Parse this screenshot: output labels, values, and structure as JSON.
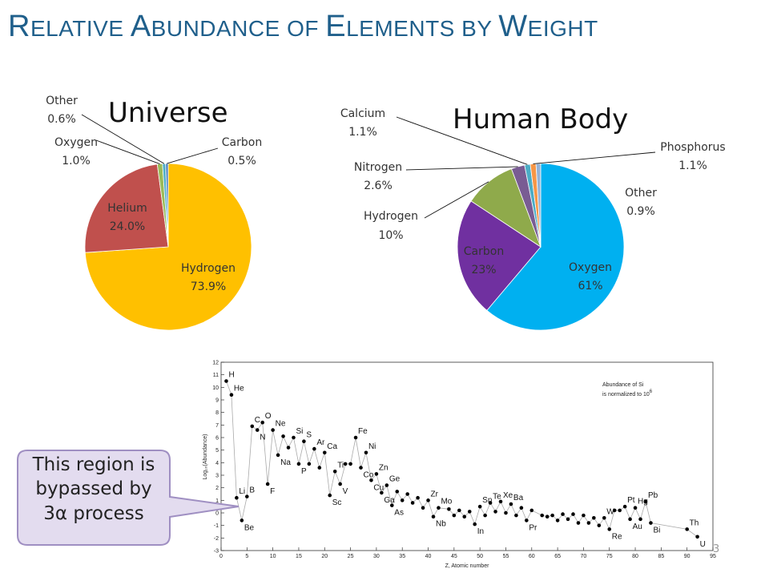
{
  "slide": {
    "title_parts": [
      {
        "text": "R",
        "size": "big"
      },
      {
        "text": "ELATIVE ",
        "size": "small"
      },
      {
        "text": "A",
        "size": "big"
      },
      {
        "text": "BUNDANCE OF ",
        "size": "small"
      },
      {
        "text": "E",
        "size": "big"
      },
      {
        "text": "LEMENTS BY ",
        "size": "small"
      },
      {
        "text": "W",
        "size": "big"
      },
      {
        "text": "EIGHT",
        "size": "small"
      }
    ],
    "slide_number": "3",
    "callout": {
      "text_lines": [
        "This region is",
        "bypassed by",
        "3α process"
      ],
      "fill": "#e3dcef",
      "stroke": "#9f8fc2"
    }
  },
  "chart_data": [
    {
      "type": "pie",
      "title": "Universe",
      "slices": [
        {
          "name": "Hydrogen",
          "label": "73.9%",
          "value": 73.9,
          "color": "#ffc000"
        },
        {
          "name": "Helium",
          "label": "24.0%",
          "value": 24.0,
          "color": "#c0504d"
        },
        {
          "name": "Oxygen",
          "label": "1.0%",
          "value": 1.0,
          "color": "#9bbb59"
        },
        {
          "name": "Other",
          "label": "0.6%",
          "value": 0.6,
          "color": "#4bacc6"
        },
        {
          "name": "Carbon",
          "label": "0.5%",
          "value": 0.5,
          "color": "#4f81bd"
        }
      ]
    },
    {
      "type": "pie",
      "title": "Human Body",
      "slices": [
        {
          "name": "Oxygen",
          "label": "61%",
          "value": 61,
          "color": "#00b0f0"
        },
        {
          "name": "Carbon",
          "label": "23%",
          "value": 23,
          "color": "#7030a0"
        },
        {
          "name": "Hydrogen",
          "label": "10%",
          "value": 10,
          "color": "#8faa4b"
        },
        {
          "name": "Nitrogen",
          "label": "2.6%",
          "value": 2.6,
          "color": "#795c93"
        },
        {
          "name": "Calcium",
          "label": "1.1%",
          "value": 1.1,
          "color": "#4bacc6"
        },
        {
          "name": "Phosphorus",
          "label": "1.1%",
          "value": 1.1,
          "color": "#f79646"
        },
        {
          "name": "Other",
          "label": "0.9%",
          "value": 0.9,
          "color": "#95b3d7"
        }
      ]
    },
    {
      "type": "line",
      "title": "",
      "xlabel": "Z, Atomic number",
      "ylabel": "Log₁₀(Abundance)",
      "xlim": [
        0,
        95
      ],
      "ylim": [
        -3,
        12
      ],
      "xticks": [
        0,
        5,
        10,
        15,
        20,
        25,
        30,
        35,
        40,
        45,
        50,
        55,
        60,
        65,
        70,
        75,
        80,
        85,
        90,
        95
      ],
      "yticks": [
        -3,
        -2,
        -1,
        0,
        1,
        2,
        3,
        4,
        5,
        6,
        7,
        8,
        9,
        10,
        11,
        12
      ],
      "annotation": [
        "Abundance of Si",
        "is normalized to 10",
        "6"
      ],
      "element_labels": [
        {
          "z": 1,
          "text": "H"
        },
        {
          "z": 2,
          "text": "He"
        },
        {
          "z": 3,
          "text": "Li"
        },
        {
          "z": 4,
          "text": "Be"
        },
        {
          "z": 5,
          "text": "B"
        },
        {
          "z": 6,
          "text": "C"
        },
        {
          "z": 7,
          "text": "N"
        },
        {
          "z": 8,
          "text": "O"
        },
        {
          "z": 9,
          "text": "F"
        },
        {
          "z": 10,
          "text": "Ne"
        },
        {
          "z": 11,
          "text": "Na"
        },
        {
          "z": 14,
          "text": "Si"
        },
        {
          "z": 15,
          "text": "P"
        },
        {
          "z": 16,
          "text": "S"
        },
        {
          "z": 18,
          "text": "Ar"
        },
        {
          "z": 20,
          "text": "Ca"
        },
        {
          "z": 21,
          "text": "Sc"
        },
        {
          "z": 22,
          "text": "Ti"
        },
        {
          "z": 23,
          "text": "V"
        },
        {
          "z": 26,
          "text": "Fe"
        },
        {
          "z": 27,
          "text": "Co"
        },
        {
          "z": 28,
          "text": "Ni"
        },
        {
          "z": 29,
          "text": "Cu"
        },
        {
          "z": 30,
          "text": "Zn"
        },
        {
          "z": 31,
          "text": "Ga"
        },
        {
          "z": 32,
          "text": "Ge"
        },
        {
          "z": 33,
          "text": "As"
        },
        {
          "z": 40,
          "text": "Zr"
        },
        {
          "z": 41,
          "text": "Nb"
        },
        {
          "z": 42,
          "text": "Mo"
        },
        {
          "z": 49,
          "text": "In"
        },
        {
          "z": 50,
          "text": "Sn"
        },
        {
          "z": 52,
          "text": "Te"
        },
        {
          "z": 54,
          "text": "Xe"
        },
        {
          "z": 56,
          "text": "Ba"
        },
        {
          "z": 59,
          "text": "Pr"
        },
        {
          "z": 74,
          "text": "W"
        },
        {
          "z": 75,
          "text": "Re"
        },
        {
          "z": 78,
          "text": "Pt"
        },
        {
          "z": 79,
          "text": "Au"
        },
        {
          "z": 80,
          "text": "Hg"
        },
        {
          "z": 82,
          "text": "Pb"
        },
        {
          "z": 83,
          "text": "Bi"
        },
        {
          "z": 90,
          "text": "Th"
        },
        {
          "z": 92,
          "text": "U"
        }
      ],
      "series": [
        {
          "x": [
            1,
            2,
            3,
            4,
            5,
            6,
            7,
            8,
            9,
            10,
            11,
            12,
            13,
            14,
            15,
            16,
            17,
            18,
            19,
            20,
            21,
            22,
            23,
            24,
            25,
            26,
            27,
            28,
            29,
            30,
            31,
            32,
            33,
            34,
            35,
            36,
            37,
            38,
            39,
            40,
            41,
            42,
            44,
            45,
            46,
            47,
            48,
            49,
            50,
            51,
            52,
            53,
            54,
            55,
            56,
            57,
            58,
            59,
            60,
            62,
            63,
            64,
            65,
            66,
            67,
            68,
            69,
            70,
            71,
            72,
            73,
            74,
            75,
            76,
            77,
            78,
            79,
            80,
            81,
            82,
            83,
            90,
            92
          ],
          "values": [
            10.5,
            9.4,
            1.2,
            -0.6,
            1.3,
            6.9,
            6.6,
            7.2,
            2.3,
            6.6,
            4.6,
            6.1,
            5.2,
            6.0,
            3.9,
            5.7,
            3.9,
            5.1,
            3.6,
            4.8,
            1.4,
            3.3,
            2.3,
            3.9,
            3.9,
            6.0,
            3.6,
            4.8,
            2.6,
            3.1,
            1.6,
            2.2,
            0.6,
            1.7,
            1.0,
            1.5,
            0.8,
            1.2,
            0.4,
            1.0,
            -0.3,
            0.4,
            0.3,
            -0.2,
            0.2,
            -0.3,
            0.1,
            -0.9,
            0.5,
            -0.2,
            0.8,
            0.1,
            0.9,
            0.0,
            0.7,
            -0.2,
            0.4,
            -0.6,
            0.2,
            -0.2,
            -0.3,
            -0.2,
            -0.6,
            -0.1,
            -0.5,
            -0.1,
            -0.8,
            -0.2,
            -0.8,
            -0.4,
            -1.0,
            -0.4,
            -1.3,
            0.2,
            0.2,
            0.5,
            -0.5,
            0.4,
            -0.5,
            0.9,
            -0.8,
            -1.3,
            -1.9
          ]
        }
      ]
    }
  ]
}
